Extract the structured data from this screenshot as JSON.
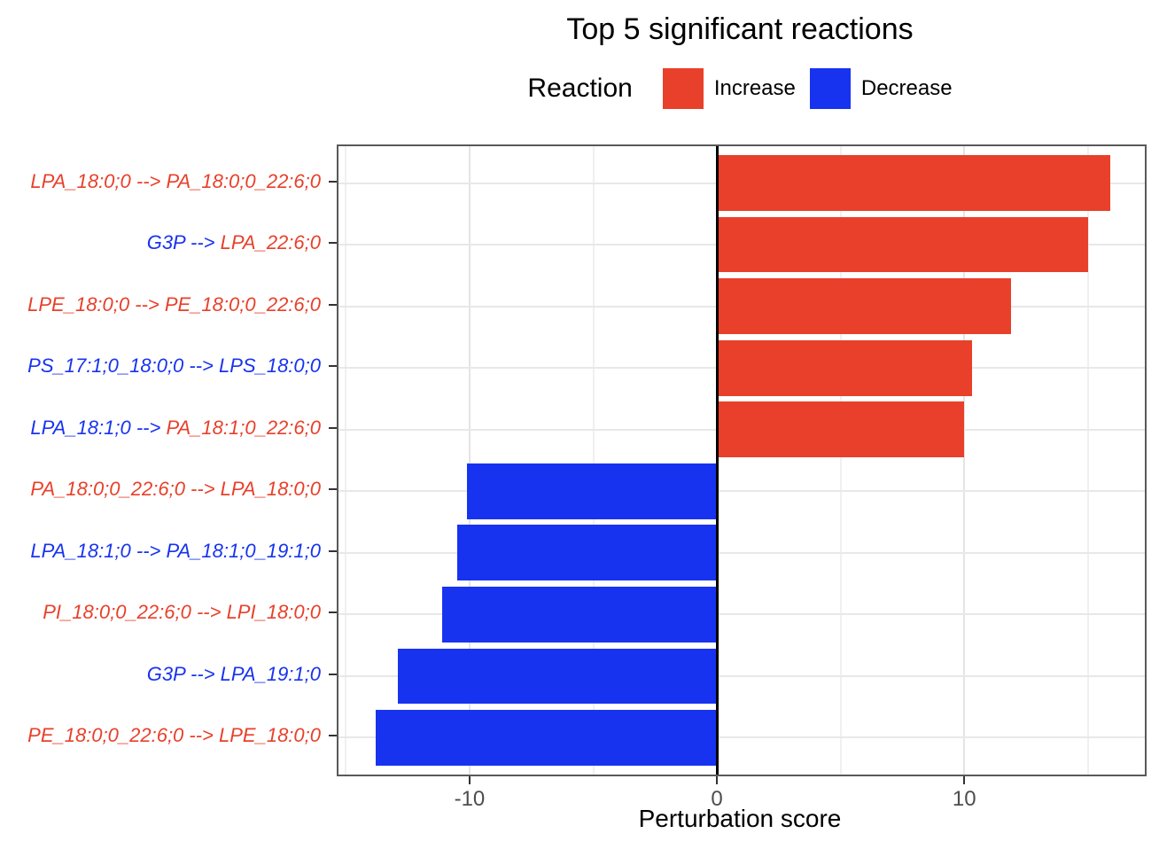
{
  "title": "Top 5 significant reactions",
  "legend": {
    "title": "Reaction",
    "items": [
      {
        "label": "Increase",
        "color": "#e8402a"
      },
      {
        "label": "Decrease",
        "color": "#1733f0"
      }
    ]
  },
  "x_axis": {
    "label": "Perturbation score",
    "tick_labels": [
      "-10",
      "0",
      "10"
    ]
  },
  "colors": {
    "increase": "#e8402a",
    "decrease": "#1733f0",
    "label_red": "#e8402a",
    "label_blue": "#1733f0",
    "zero_line": "#000000",
    "grid_major": "#e4e4e4",
    "grid_minor": "#f0f0f0",
    "tick_text": "#4d4d4d"
  },
  "chart_data": {
    "type": "bar",
    "orientation": "horizontal",
    "title": "Top 5 significant reactions",
    "xlabel": "Perturbation score",
    "ylabel": "",
    "xlim": [
      -15.3,
      17.3
    ],
    "x_major_ticks": [
      -10,
      0,
      10
    ],
    "x_minor_gridlines": [
      -15,
      -5,
      5,
      15
    ],
    "zero_line": 0,
    "grid": true,
    "legend_position": "top",
    "bar_width_fraction": 0.9,
    "bars": [
      {
        "value": 15.9,
        "direction": "increase",
        "label_segments": [
          {
            "text": "LPA_18:0;0 --> PA_18:0;0_22:6;0",
            "color": "#e8402a"
          }
        ]
      },
      {
        "value": 15.0,
        "direction": "increase",
        "label_segments": [
          {
            "text": "G3P --> ",
            "color": "#1733f0"
          },
          {
            "text": "LPA_22:6;0",
            "color": "#e8402a"
          }
        ]
      },
      {
        "value": 11.9,
        "direction": "increase",
        "label_segments": [
          {
            "text": "LPE_18:0;0 --> PE_18:0;0_22:6;0",
            "color": "#e8402a"
          }
        ]
      },
      {
        "value": 10.3,
        "direction": "increase",
        "label_segments": [
          {
            "text": "PS_17:1;0_18:0;0 --> LPS_18:0;0",
            "color": "#1733f0"
          }
        ]
      },
      {
        "value": 10.0,
        "direction": "increase",
        "label_segments": [
          {
            "text": "LPA_18:1;0 --> ",
            "color": "#1733f0"
          },
          {
            "text": "PA_18:1;0_22:6;0",
            "color": "#e8402a"
          }
        ]
      },
      {
        "value": -10.1,
        "direction": "decrease",
        "label_segments": [
          {
            "text": "PA_18:0;0_22:6;0 --> LPA_18:0;0",
            "color": "#e8402a"
          }
        ]
      },
      {
        "value": -10.5,
        "direction": "decrease",
        "label_segments": [
          {
            "text": "LPA_18:1;0 --> PA_18:1;0_19:1;0",
            "color": "#1733f0"
          }
        ]
      },
      {
        "value": -11.1,
        "direction": "decrease",
        "label_segments": [
          {
            "text": "PI_18:0;0_22:6;0 --> LPI_18:0;0",
            "color": "#e8402a"
          }
        ]
      },
      {
        "value": -12.9,
        "direction": "decrease",
        "label_segments": [
          {
            "text": "G3P --> LPA_19:1;0",
            "color": "#1733f0"
          }
        ]
      },
      {
        "value": -13.8,
        "direction": "decrease",
        "label_segments": [
          {
            "text": "PE_18:0;0_22:6;0 --> LPE_18:0;0",
            "color": "#e8402a"
          }
        ]
      }
    ]
  }
}
